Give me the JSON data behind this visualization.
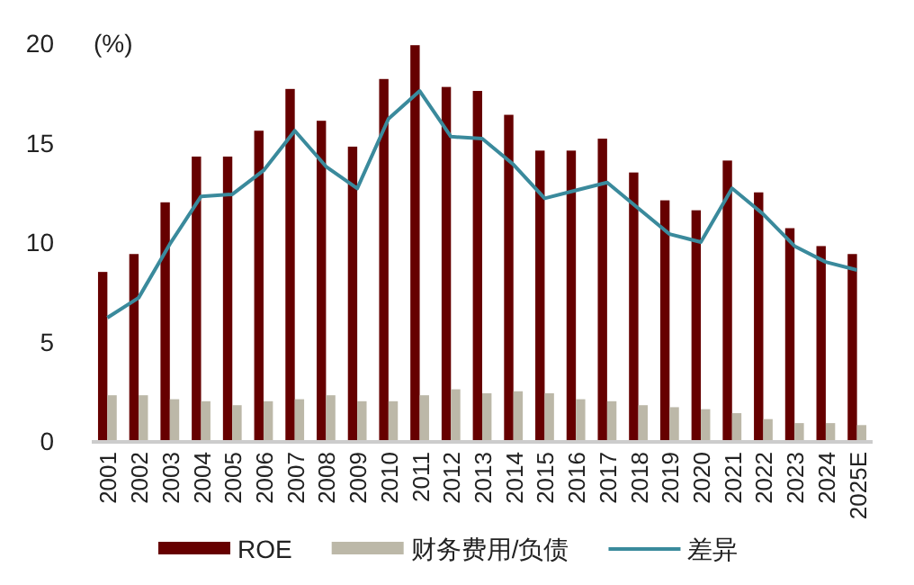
{
  "chart_data": {
    "type": "bar",
    "ylabel": "(%)",
    "categories": [
      "2001",
      "2002",
      "2003",
      "2004",
      "2005",
      "2006",
      "2007",
      "2008",
      "2009",
      "2010",
      "2011",
      "2012",
      "2013",
      "2014",
      "2015",
      "2016",
      "2017",
      "2018",
      "2019",
      "2020",
      "2021",
      "2022",
      "2023",
      "2024",
      "2025E"
    ],
    "series": [
      {
        "name": "ROE",
        "color": "#660000",
        "values": [
          8.5,
          9.4,
          12.0,
          14.3,
          14.3,
          15.6,
          17.7,
          16.1,
          14.8,
          18.2,
          19.9,
          17.8,
          17.6,
          16.4,
          14.6,
          14.6,
          15.2,
          13.5,
          12.1,
          11.6,
          14.1,
          12.5,
          10.7,
          9.8,
          9.4
        ]
      },
      {
        "name": "财务费用/负债",
        "color": "#bcb8a8",
        "values": [
          2.3,
          2.3,
          2.1,
          2.0,
          1.8,
          2.0,
          2.1,
          2.3,
          2.0,
          2.0,
          2.3,
          2.6,
          2.4,
          2.5,
          2.4,
          2.1,
          2.0,
          1.8,
          1.7,
          1.6,
          1.4,
          1.1,
          0.9,
          0.9,
          0.8
        ]
      },
      {
        "name": "差异",
        "type": "line",
        "color": "#3a8a9c",
        "values": [
          6.2,
          7.2,
          9.9,
          12.3,
          12.4,
          13.6,
          15.6,
          13.8,
          12.7,
          16.2,
          17.6,
          15.3,
          15.2,
          13.9,
          12.2,
          12.6,
          13.0,
          11.7,
          10.4,
          10.0,
          12.7,
          11.4,
          9.8,
          9.0,
          8.6
        ]
      }
    ],
    "ylim": [
      0,
      20
    ],
    "yticks": [
      0,
      5,
      10,
      15,
      20
    ],
    "grid": false,
    "legend": "bottom"
  }
}
